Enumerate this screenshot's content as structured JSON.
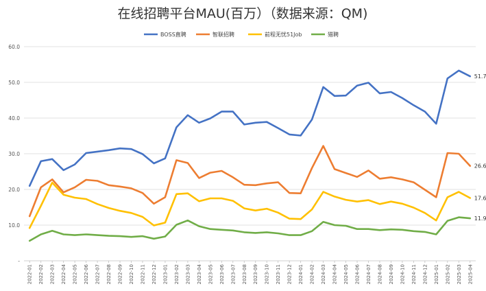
{
  "chart_data": {
    "type": "line",
    "title": "在线招聘平台MAU(百万）（数据来源：QM)",
    "ylim": [
      0,
      60
    ],
    "y_ticks": [
      "-",
      "10.0",
      "20.0",
      "30.0",
      "40.0",
      "50.0",
      "60.0"
    ],
    "legend_position": "top-center",
    "grid": true,
    "categories": [
      "2022-01",
      "2022-02",
      "2022-03",
      "2022-04",
      "2022-05",
      "2022-06",
      "2022-07",
      "2022-08",
      "2022-09",
      "2022-10",
      "2022-11",
      "2022-12",
      "2023-01",
      "2023-02",
      "2023-03",
      "2023-04",
      "2023-05",
      "2023-06",
      "2023-07",
      "2023-08",
      "2023-09",
      "2023-10",
      "2023-11",
      "2023-12",
      "2024-01",
      "2024-02",
      "2024-03",
      "2024-04",
      "2024-05",
      "2024-06",
      "2024-07",
      "2024-08",
      "2024-09",
      "2024-10",
      "2024-11",
      "2024-12",
      "2025-01",
      "2025-02",
      "2025-03",
      "2025-04"
    ],
    "series": [
      {
        "name": "BOSS直聘",
        "color": "#4472c4",
        "end_label": "51.7",
        "values": [
          21.0,
          27.9,
          28.5,
          25.4,
          27.0,
          30.2,
          30.6,
          31.0,
          31.5,
          31.3,
          29.9,
          27.3,
          28.7,
          37.4,
          40.8,
          38.7,
          39.9,
          41.8,
          41.8,
          38.2,
          38.7,
          38.9,
          37.2,
          35.4,
          35.1,
          39.6,
          48.7,
          46.2,
          46.3,
          49.1,
          49.9,
          46.9,
          47.3,
          45.6,
          43.6,
          41.8,
          38.4,
          51.1,
          53.3,
          51.7
        ]
      },
      {
        "name": "智联招聘",
        "color": "#ed7d31",
        "end_label": "26.6",
        "values": [
          12.5,
          20.6,
          22.8,
          19.2,
          20.6,
          22.7,
          22.4,
          21.2,
          20.8,
          20.3,
          19.0,
          16.0,
          17.8,
          28.2,
          27.4,
          23.2,
          24.7,
          25.2,
          23.4,
          21.3,
          21.2,
          21.7,
          22.0,
          19.0,
          18.9,
          26.0,
          32.2,
          25.7,
          24.6,
          23.5,
          25.3,
          23.0,
          23.4,
          22.8,
          22.0,
          19.9,
          17.8,
          30.2,
          30.0,
          26.6
        ]
      },
      {
        "name": "前程无忧51Job",
        "color": "#ffc000",
        "end_label": "17.6",
        "values": [
          9.2,
          15.4,
          21.9,
          18.5,
          17.7,
          17.3,
          15.9,
          14.8,
          14.0,
          13.4,
          12.3,
          9.9,
          10.7,
          18.7,
          18.9,
          16.7,
          17.5,
          17.5,
          16.8,
          14.7,
          14.1,
          14.6,
          13.5,
          11.8,
          11.7,
          14.4,
          19.3,
          18.0,
          17.1,
          16.6,
          17.0,
          15.9,
          16.6,
          16.0,
          14.9,
          13.4,
          11.3,
          17.8,
          19.3,
          17.6
        ]
      },
      {
        "name": "猎聘",
        "color": "#70ad47",
        "end_label": "11.9",
        "values": [
          5.6,
          7.4,
          8.4,
          7.4,
          7.2,
          7.4,
          7.2,
          7.0,
          6.9,
          6.7,
          6.9,
          6.2,
          6.8,
          10.1,
          11.3,
          9.7,
          8.9,
          8.7,
          8.5,
          8.0,
          7.8,
          8.0,
          7.7,
          7.2,
          7.2,
          8.3,
          10.9,
          10.0,
          9.8,
          8.9,
          8.9,
          8.6,
          8.8,
          8.7,
          8.3,
          8.1,
          7.4,
          11.2,
          12.2,
          11.9
        ]
      }
    ]
  }
}
